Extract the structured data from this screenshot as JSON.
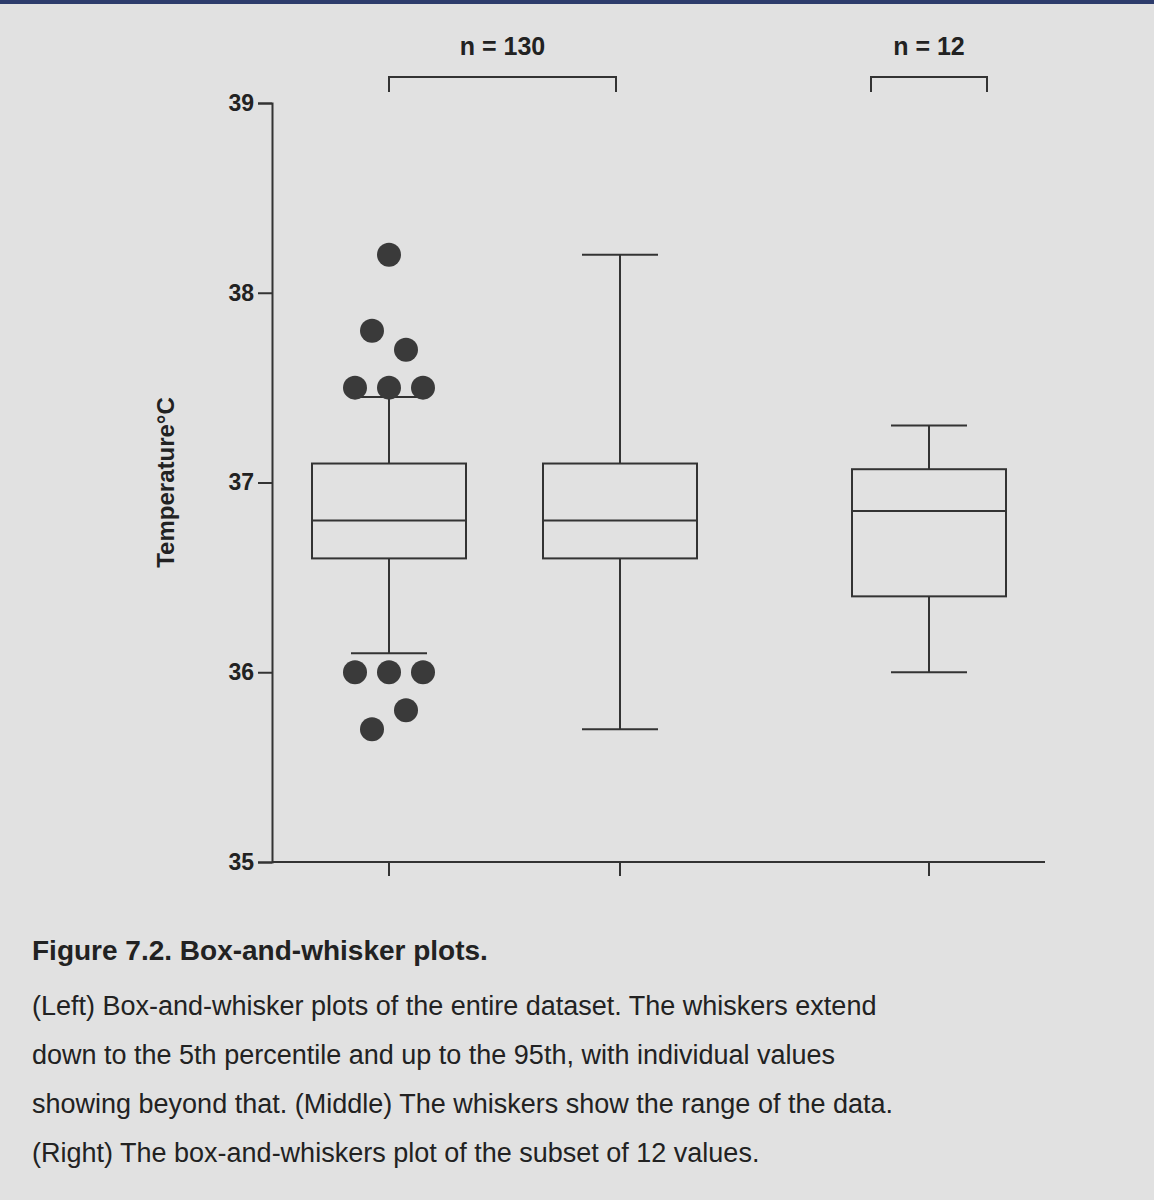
{
  "chart_data": {
    "type": "box",
    "title": "Figure 7.2. Box-and-whisker plots.",
    "caption": [
      "(Left) Box-and-whisker plots of the entire dataset. The whiskers extend",
      "down to the 5th percentile and up to the 95th, with individual values",
      "showing beyond that. (Middle) The whiskers show the range of the data.",
      "(Right) The box-and-whiskers plot of the subset of 12 values."
    ],
    "y_label": "Temperature°C",
    "categories": [
      null,
      null,
      null
    ],
    "boxes": [
      {
        "group": "n = 130",
        "whisker_low": 36.1,
        "q1": 36.6,
        "median": 36.8,
        "q3": 37.1,
        "whisker_high": 37.45,
        "outliers": [
          38.2,
          37.8,
          37.7,
          37.5,
          37.5,
          37.5,
          36.0,
          36.0,
          36.0,
          35.8,
          35.7
        ]
      },
      {
        "group": "n = 130",
        "whisker_low": 35.7,
        "q1": 36.6,
        "median": 36.8,
        "q3": 37.1,
        "whisker_high": 38.2,
        "outliers": []
      },
      {
        "group": "n = 12",
        "whisker_low": 36.0,
        "q1": 36.4,
        "median": 36.85,
        "q3": 37.07,
        "whisker_high": 37.3,
        "outliers": []
      }
    ],
    "ylim": [
      35,
      39
    ],
    "yticks": [
      35,
      36,
      37,
      38,
      39
    ],
    "tick_labels": "y",
    "grid": false
  }
}
